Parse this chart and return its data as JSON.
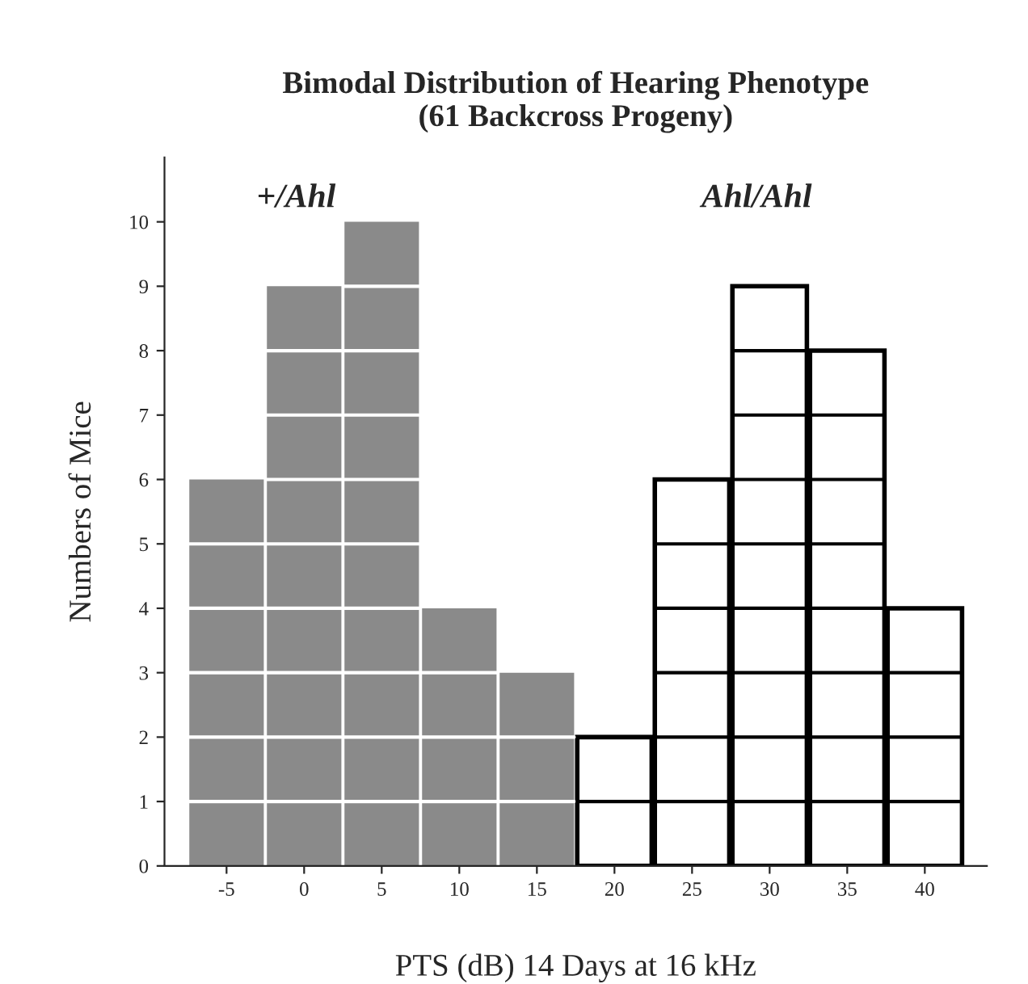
{
  "chart_data": {
    "type": "bar",
    "title": "Bimodal Distribution of Hearing Phenotype\n(61 Backcross Progeny)",
    "xlabel": "PTS (dB) 14 Days at 16 kHz",
    "ylabel": "Numbers of Mice",
    "categories": [
      "-5",
      "0",
      "5",
      "10",
      "15",
      "20",
      "25",
      "30",
      "35",
      "40"
    ],
    "values": [
      6,
      9,
      10,
      4,
      3,
      2,
      6,
      9,
      8,
      4
    ],
    "colors": [
      "#8a8a8a",
      "#8a8a8a",
      "#8a8a8a",
      "#8a8a8a",
      "#8a8a8a",
      "#ffffff",
      "#ffffff",
      "#ffffff",
      "#ffffff",
      "#ffffff"
    ],
    "ylim": [
      0,
      11
    ],
    "yticks": [
      0,
      1,
      2,
      3,
      4,
      5,
      6,
      7,
      8,
      9,
      10
    ],
    "grid": false,
    "legend": false,
    "annotations": [
      "+/Ahl",
      "Ahl/Ahl"
    ]
  }
}
